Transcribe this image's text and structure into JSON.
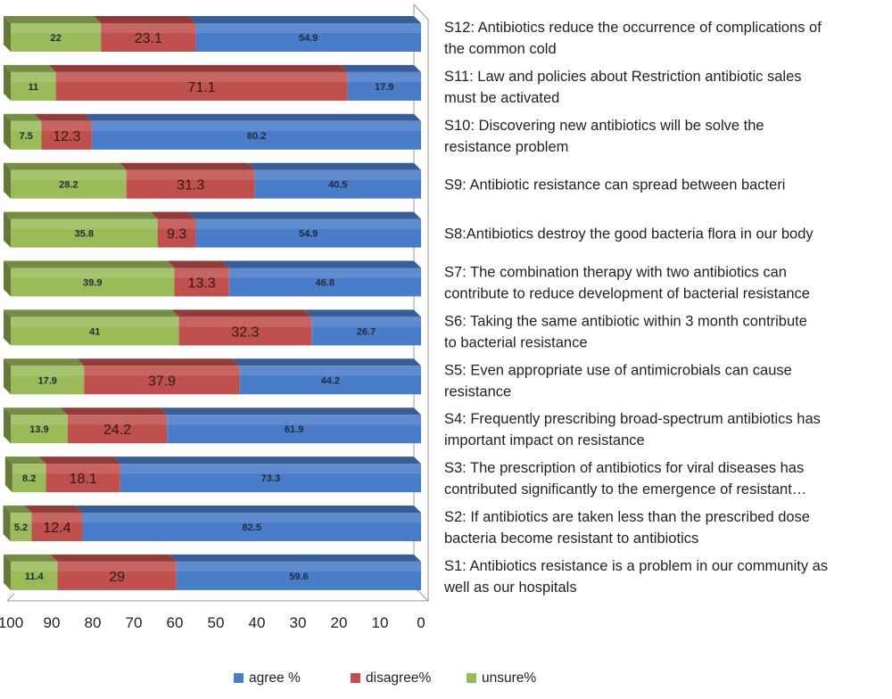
{
  "chart_data": {
    "type": "bar",
    "orientation": "horizontal",
    "stacked": true,
    "style": "3d",
    "x_axis_reversed": true,
    "xlim": [
      0,
      100
    ],
    "x_ticks": [
      "100",
      "90",
      "80",
      "70",
      "60",
      "50",
      "40",
      "30",
      "20",
      "10",
      "0"
    ],
    "legend_position": "bottom",
    "series": [
      {
        "name": "agree %",
        "color": "#4a7dc9",
        "values": [
          54.9,
          17.9,
          80.2,
          40.5,
          54.9,
          46.8,
          26.7,
          44.2,
          61.9,
          73.3,
          82.5,
          59.6
        ]
      },
      {
        "name": "disagree%",
        "color": "#c0504d",
        "values": [
          23.1,
          71.1,
          12.3,
          31.3,
          9.3,
          13.3,
          32.3,
          37.9,
          24.2,
          18.1,
          12.4,
          29
        ]
      },
      {
        "name": "unsure%",
        "color": "#9bbb59",
        "values": [
          22,
          11,
          7.5,
          28.2,
          35.8,
          39.9,
          41,
          17.9,
          13.9,
          8.2,
          5.2,
          11.4
        ]
      }
    ],
    "data_labels": [
      [
        "54.9",
        "23.1",
        "22"
      ],
      [
        "17.9",
        "71.1",
        "11"
      ],
      [
        "80.2",
        "12.3",
        "7.5"
      ],
      [
        "40.5",
        "31.3",
        "28.2"
      ],
      [
        "54.9",
        "9.3",
        "35.8"
      ],
      [
        "46.8",
        "13.3",
        "39.9"
      ],
      [
        "26.7",
        "32.3",
        "41"
      ],
      [
        "44.2",
        "37.9",
        "17.9"
      ],
      [
        "61.9",
        "24.2",
        "13.9"
      ],
      [
        "73.3",
        "18.1",
        "8.2"
      ],
      [
        "82.5",
        "12.4",
        "5.2"
      ],
      [
        "59.6",
        "29",
        "11.4"
      ]
    ],
    "categories": [
      [
        "S12: Antibiotics reduce the occurrence of complications of",
        "the common cold"
      ],
      [
        "S11: Law and  policies about Restriction antibiotic sales",
        "must be activated"
      ],
      [
        "S10: Discovering  new antibiotics will be solve the",
        "resistance  problem"
      ],
      [
        "S9: Antibiotic resistance can spread between bacteri"
      ],
      [
        " S8:Antibiotics destroy the good bacteria  flora  in our body"
      ],
      [
        "S7: The combination therapy with two antibiotics can",
        "contribute to reduce development of bacterial resistance"
      ],
      [
        "S6: Taking the same antibiotic within 3 month contribute",
        "to bacterial resistance"
      ],
      [
        "S5: Even appropriate use of antimicrobials can cause",
        "resistance"
      ],
      [
        "S4: Frequently prescribing broad-spectrum antibiotics has",
        "important impact on resistance"
      ],
      [
        "S3: The prescription of antibiotics for viral diseases has",
        "contributed significantly to the emergence of  resistant…"
      ],
      [
        "S2: If antibiotics are taken less than the prescribed dose",
        "bacteria become resistant to antibiotics"
      ],
      [
        "S1: Antibiotics resistance is a problem in our community as",
        "well as our hospitals"
      ]
    ]
  }
}
